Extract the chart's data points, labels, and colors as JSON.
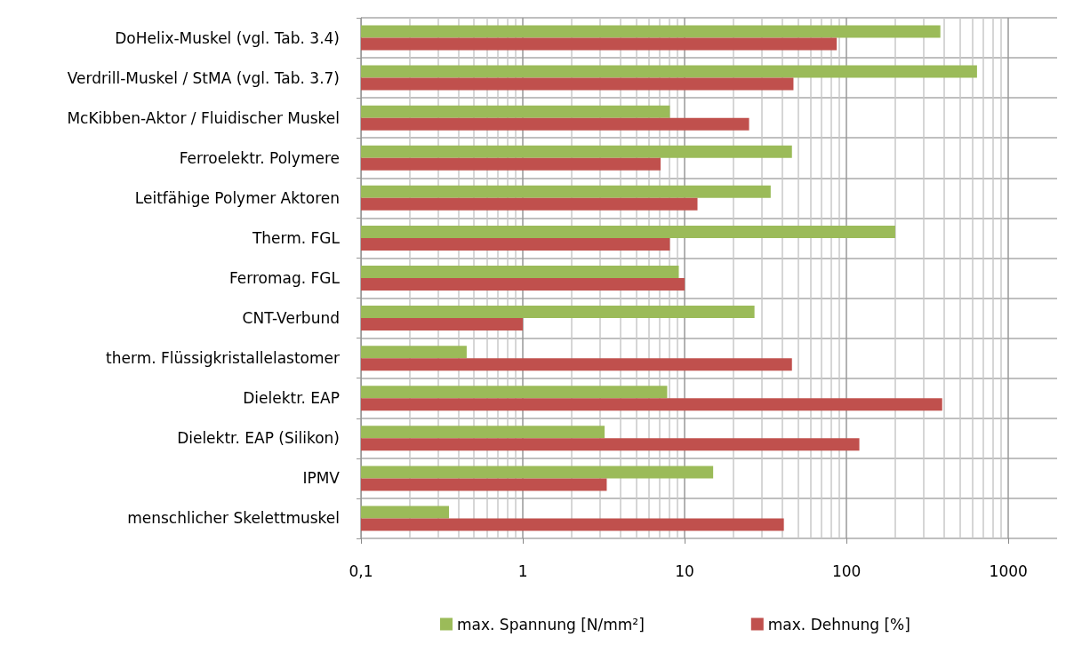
{
  "chart_data": {
    "type": "bar",
    "orientation": "horizontal",
    "log": "x",
    "categories": [
      "DoHelix-Muskel (vgl. Tab. 3.4)",
      "Verdrill-Muskel / StMA (vgl. Tab. 3.7)",
      "McKibben-Aktor / Fluidischer Muskel",
      "Ferroelektr. Polymere",
      "Leitfähige Polymer Aktoren",
      "Therm. FGL",
      "Ferromag. FGL",
      "CNT-Verbund",
      "therm. Flüssigkristallelastomer",
      "Dielektr. EAP",
      "Dielektr. EAP (Silikon)",
      "IPMV",
      "menschlicher Skelettmuskel"
    ],
    "series": [
      {
        "name": "max. Spannung [N/mm²]",
        "color": "#9bbb59",
        "values": [
          380,
          640,
          8.1,
          46,
          34,
          200,
          9.2,
          27,
          0.45,
          7.8,
          3.2,
          15,
          0.35
        ]
      },
      {
        "name": "max. Dehnung [%]",
        "color": "#c0504d",
        "values": [
          87,
          47,
          25,
          7.1,
          12,
          8.1,
          10,
          1,
          46,
          390,
          120,
          3.3,
          41
        ]
      }
    ],
    "xlim": [
      0.1,
      2000
    ],
    "xticks": [
      {
        "value": 0.1,
        "label": "0,1"
      },
      1,
      10,
      100,
      1000
    ],
    "grid": true,
    "legend": "bottom"
  }
}
